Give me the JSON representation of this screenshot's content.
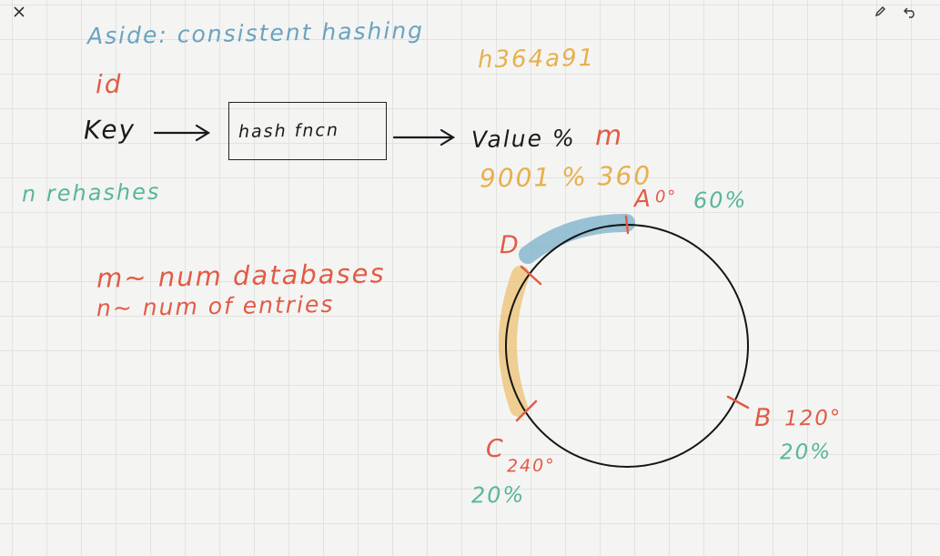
{
  "toolbar": {
    "close_icon": "close-icon",
    "pen_icon": "pen-icon",
    "undo_icon": "undo-icon"
  },
  "notes": {
    "title": "Aside: consistent hashing",
    "id_label": "id",
    "hash_value": "h364a91",
    "key_label": "Key",
    "hash_fn_label": "hash fncn",
    "value_text": "Value %",
    "m_label": "m",
    "example": "9001 % 360",
    "rehashes": "n rehashes",
    "m_def": "m~ num databases",
    "n_def": "n~ num of entries"
  },
  "ring": {
    "node_a": "A",
    "node_a_deg": "0°",
    "node_a_pct": "60%",
    "node_b": "B",
    "node_b_deg": "120°",
    "node_b_pct": "20%",
    "node_c": "C",
    "node_c_deg": "240°",
    "node_c_pct": "20%",
    "node_d": "D"
  },
  "colors": {
    "blue_ink": "#6aa3bf",
    "orange_ink": "#e25b45",
    "gold_ink": "#e8b04c",
    "green_ink": "#58b69a",
    "black_ink": "#1a1a1a"
  }
}
